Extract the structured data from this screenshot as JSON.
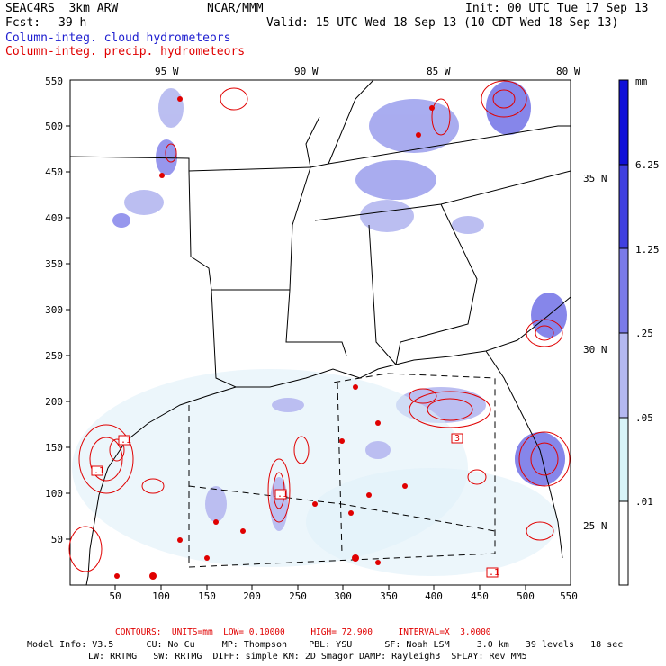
{
  "header": {
    "model": "SEAC4RS  3km ARW",
    "org": "NCAR/MMM",
    "init": "Init: 00 UTC Tue 17 Sep 13",
    "fcst_label": "Fcst:",
    "fcst_value": "39 h",
    "valid": "Valid: 15 UTC Wed 18 Sep 13 (10 CDT Wed 18 Sep 13)",
    "field1": "Column-integ. cloud hydrometeors",
    "field2": "Column-integ. precip. hydrometeors"
  },
  "map": {
    "lon_labels": [
      "95 W",
      "90 W",
      "85 W",
      "80 W"
    ],
    "lat_labels": [
      "35 N",
      "30 N",
      "25 N"
    ],
    "y_ticks": [
      "550",
      "500",
      "450",
      "400",
      "350",
      "300",
      "250",
      "200",
      "150",
      "100",
      "50"
    ],
    "x_ticks": [
      "50",
      "100",
      "150",
      "200",
      "250",
      "300",
      "350",
      "400",
      "450",
      "500",
      "550"
    ],
    "contour_labels": [
      ".1",
      ".1",
      ".1",
      ".1",
      "3"
    ]
  },
  "colorbar": {
    "unit": "mm",
    "levels": [
      "6.25",
      "1.25",
      ".25",
      ".05",
      ".01"
    ],
    "colors": [
      "#1010d8",
      "#4040e0",
      "#7a7ae8",
      "#b4b8f0",
      "#d8f4f8",
      "#ffffff"
    ]
  },
  "footer": {
    "contours": "CONTOURS:  UNITS=mm  LOW= 0.10000     HIGH= 72.900     INTERVAL=X  3.0000",
    "info1": "Model Info: V3.5      CU: No Cu     MP: Thompson    PBL: YSU      SF: Noah LSM     3.0 km   39 levels   18 sec",
    "info2": "LW: RRTMG   SW: RRTMG  DIFF: simple KM: 2D Smagor DAMP: Rayleigh3  SFLAY: Rev MM5"
  }
}
